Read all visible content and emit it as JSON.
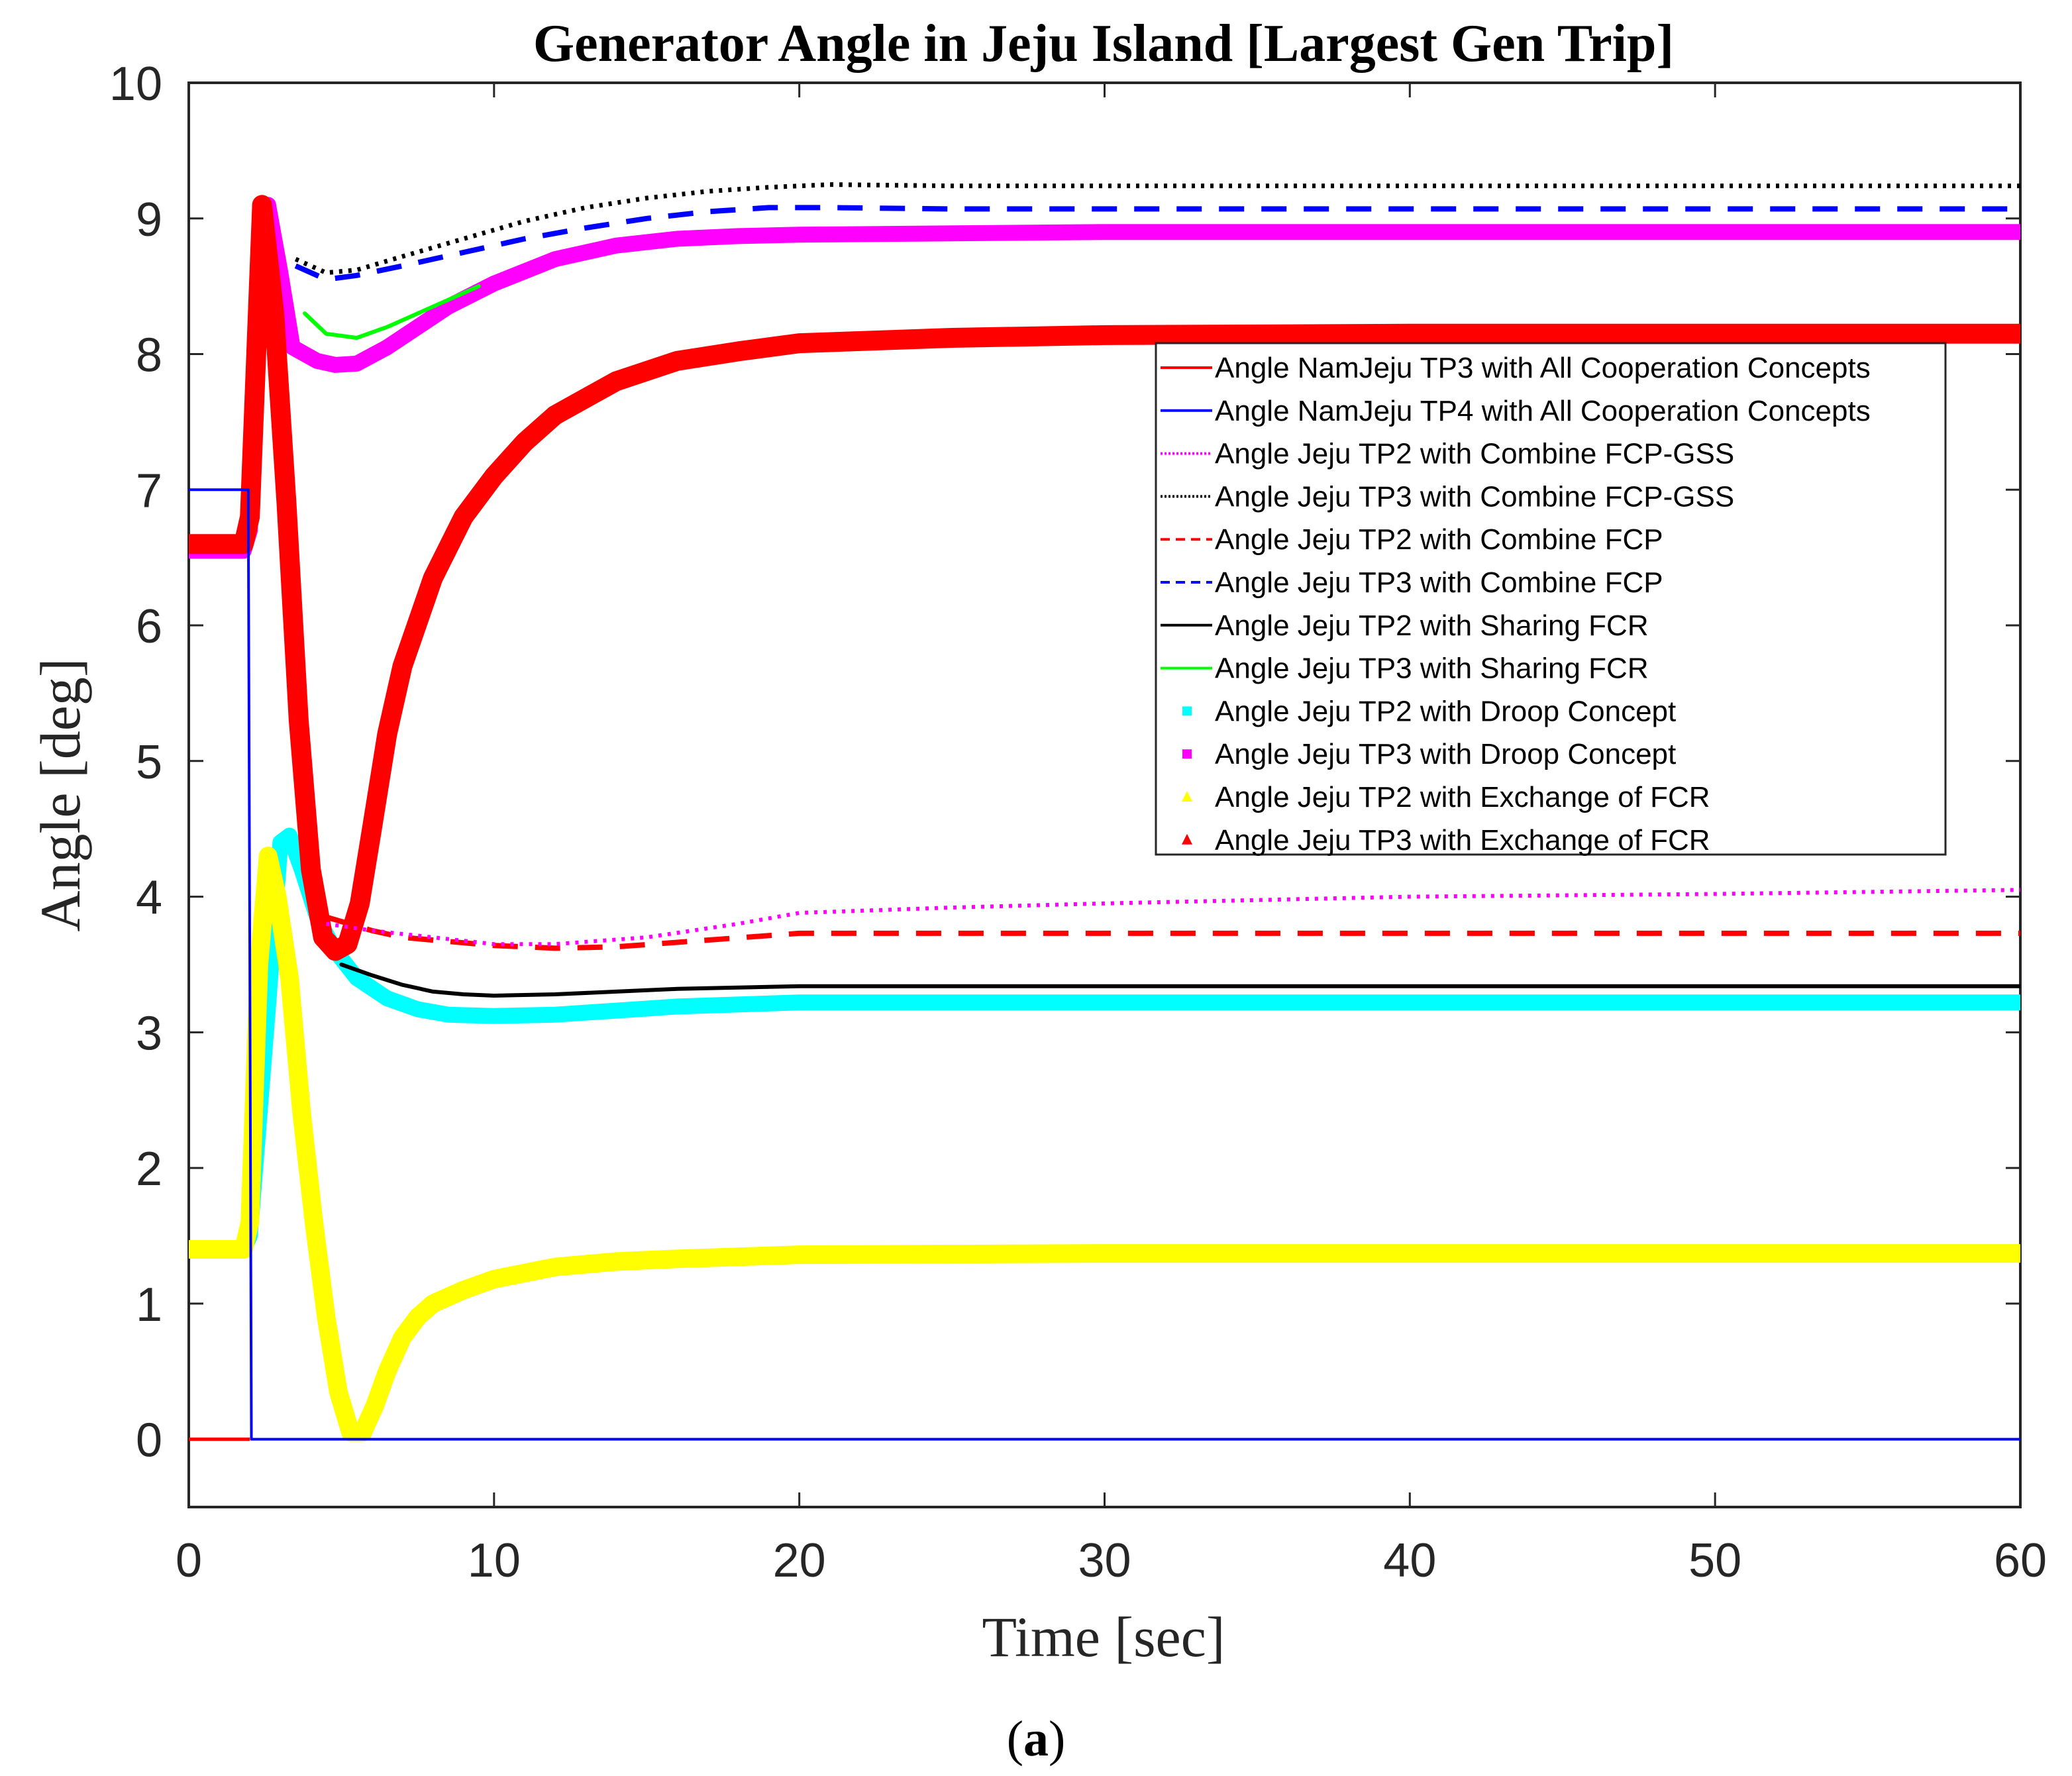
{
  "chart_data": {
    "type": "line",
    "title": "Generator Angle in Jeju Island [Largest Gen Trip]",
    "xlabel": "Time [sec]",
    "ylabel": "Angle [deg]",
    "caption_letter": "a",
    "xlim": [
      0,
      60
    ],
    "ylim": [
      -0.5,
      10
    ],
    "xticks": [
      0,
      10,
      20,
      30,
      40,
      50,
      60
    ],
    "yticks": [
      0,
      1,
      2,
      3,
      4,
      5,
      6,
      7,
      8,
      9,
      10
    ],
    "legend_position": "right-center",
    "series": [
      {
        "name": "Angle NamJeju TP3 with All Cooperation Concepts",
        "color": "#ff0000",
        "style": "solid",
        "legend_only": true,
        "x": [
          0,
          2.0
        ],
        "y": [
          0,
          0
        ]
      },
      {
        "name": "Angle NamJeju TP4 with All Cooperation Concepts",
        "color": "#0000ff",
        "style": "solid",
        "width": 4,
        "x": [
          0,
          1.95,
          1.95,
          2.05,
          2.05,
          60
        ],
        "y": [
          7.0,
          7.0,
          6.8,
          0.05,
          0,
          0
        ]
      },
      {
        "name": "Angle Jeju TP2 with Combine FCP-GSS",
        "color": "#ff00ff",
        "style": "dotted",
        "width": 6,
        "x": [
          4.5,
          6,
          8,
          10,
          12,
          15,
          18,
          20,
          25,
          30,
          40,
          50,
          60
        ],
        "y": [
          3.8,
          3.75,
          3.7,
          3.65,
          3.65,
          3.7,
          3.8,
          3.88,
          3.92,
          3.95,
          4.0,
          4.02,
          4.05
        ]
      },
      {
        "name": "Angle Jeju TP3 with Combine FCP-GSS",
        "color": "#000000",
        "style": "dotted",
        "width": 7,
        "x": [
          3.5,
          4.5,
          5.5,
          7,
          9,
          11,
          13,
          15,
          17,
          19,
          21,
          25,
          30,
          40,
          50,
          60
        ],
        "y": [
          8.7,
          8.6,
          8.62,
          8.72,
          8.85,
          8.98,
          9.08,
          9.15,
          9.2,
          9.23,
          9.25,
          9.24,
          9.24,
          9.24,
          9.24,
          9.24
        ]
      },
      {
        "name": "Angle Jeju TP2 with Combine FCP",
        "color": "#ff0000",
        "style": "dashed",
        "width": 8,
        "x": [
          4.5,
          6,
          7,
          8,
          10,
          12,
          14,
          17,
          20,
          30,
          40,
          50,
          60
        ],
        "y": [
          3.85,
          3.75,
          3.7,
          3.68,
          3.64,
          3.62,
          3.63,
          3.68,
          3.73,
          3.73,
          3.73,
          3.73,
          3.73
        ]
      },
      {
        "name": "Angle Jeju TP3 with Combine FCP",
        "color": "#0000ff",
        "style": "dashed",
        "width": 8,
        "x": [
          3.5,
          4.5,
          5.5,
          7,
          9,
          11,
          13,
          15,
          17,
          19,
          21,
          25,
          30,
          40,
          50,
          60
        ],
        "y": [
          8.65,
          8.55,
          8.58,
          8.65,
          8.75,
          8.85,
          8.93,
          9.0,
          9.05,
          9.08,
          9.08,
          9.07,
          9.07,
          9.07,
          9.07,
          9.07
        ]
      },
      {
        "name": "Angle Jeju TP2 with Sharing FCR",
        "color": "#000000",
        "style": "solid",
        "width": 6,
        "x": [
          5,
          6,
          7,
          8,
          9,
          10,
          12,
          14,
          16,
          20,
          30,
          40,
          50,
          60
        ],
        "y": [
          3.5,
          3.42,
          3.35,
          3.3,
          3.28,
          3.27,
          3.28,
          3.3,
          3.32,
          3.34,
          3.34,
          3.34,
          3.34,
          3.34
        ]
      },
      {
        "name": "Angle Jeju TP3 with Sharing FCR",
        "color": "#00ff00",
        "style": "solid",
        "width": 6,
        "x": [
          3.8,
          4.5,
          5.5,
          6.5,
          7.5,
          8.5,
          9.5
        ],
        "y": [
          8.3,
          8.15,
          8.12,
          8.2,
          8.3,
          8.4,
          8.5
        ]
      },
      {
        "name": "Angle Jeju TP2 with Droop Concept",
        "color": "#00ffff",
        "style": "marker-square",
        "width": 24,
        "x": [
          0,
          1.8,
          2.0,
          2.6,
          3.0,
          3.3,
          3.7,
          4.2,
          4.8,
          5.5,
          6.5,
          7.5,
          8.5,
          10,
          12,
          14,
          16,
          20,
          30,
          40,
          50,
          60
        ],
        "y": [
          1.4,
          1.4,
          1.5,
          3.2,
          4.4,
          4.45,
          4.2,
          3.85,
          3.6,
          3.4,
          3.25,
          3.17,
          3.13,
          3.12,
          3.13,
          3.16,
          3.19,
          3.22,
          3.22,
          3.22,
          3.22,
          3.22
        ]
      },
      {
        "name": "Angle Jeju TP3 with Droop Concept",
        "color": "#ff00ff",
        "style": "marker-square",
        "width": 24,
        "x": [
          0,
          1.8,
          2.0,
          2.3,
          2.6,
          3.0,
          3.4,
          3.8,
          4.2,
          4.8,
          5.5,
          6.5,
          7.5,
          8.5,
          10,
          12,
          14,
          16,
          18,
          20,
          25,
          30,
          40,
          50,
          60
        ],
        "y": [
          6.55,
          6.55,
          6.7,
          8.6,
          9.1,
          8.6,
          8.05,
          8.0,
          7.95,
          7.92,
          7.93,
          8.05,
          8.2,
          8.35,
          8.52,
          8.7,
          8.8,
          8.85,
          8.87,
          8.88,
          8.89,
          8.9,
          8.9,
          8.9,
          8.9
        ]
      },
      {
        "name": "Angle Jeju TP2 with Exchange of FCR",
        "color": "#ffff00",
        "style": "marker-triangle",
        "width": 28,
        "x": [
          0,
          1.8,
          2.0,
          2.3,
          2.6,
          2.9,
          3.3,
          3.7,
          4.1,
          4.5,
          4.9,
          5.3,
          5.7,
          6.1,
          6.5,
          7,
          7.5,
          8,
          9,
          10,
          12,
          14,
          16,
          20,
          30,
          40,
          50,
          60
        ],
        "y": [
          1.4,
          1.4,
          1.6,
          3.5,
          4.3,
          4.0,
          3.4,
          2.4,
          1.6,
          0.9,
          0.35,
          0.05,
          0.05,
          0.25,
          0.5,
          0.75,
          0.9,
          1.0,
          1.1,
          1.18,
          1.27,
          1.31,
          1.33,
          1.36,
          1.37,
          1.37,
          1.37,
          1.37
        ]
      },
      {
        "name": "Angle Jeju TP3 with Exchange of FCR",
        "color": "#ff0000",
        "style": "marker-triangle",
        "width": 30,
        "x": [
          0,
          1.8,
          2.0,
          2.4,
          2.8,
          3.2,
          3.6,
          4.0,
          4.4,
          4.8,
          5.2,
          5.6,
          6.0,
          6.5,
          7,
          8,
          9,
          10,
          11,
          12,
          14,
          16,
          18,
          20,
          25,
          30,
          40,
          50,
          60
        ],
        "y": [
          6.6,
          6.6,
          6.8,
          9.1,
          8.3,
          6.9,
          5.3,
          4.2,
          3.7,
          3.6,
          3.65,
          3.95,
          4.5,
          5.2,
          5.7,
          6.35,
          6.8,
          7.1,
          7.35,
          7.55,
          7.8,
          7.95,
          8.02,
          8.08,
          8.12,
          8.14,
          8.15,
          8.15,
          8.15
        ]
      }
    ]
  }
}
